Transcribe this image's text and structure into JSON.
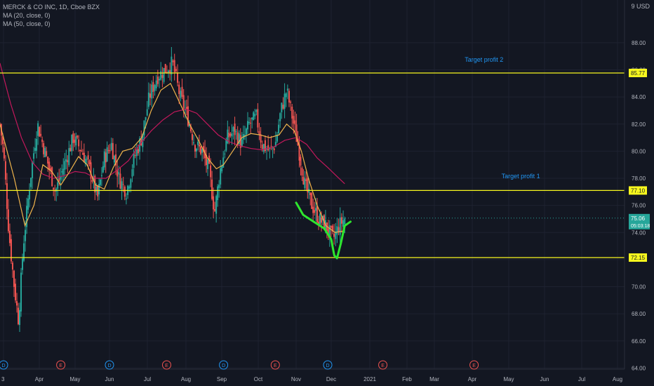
{
  "header": {
    "symbol_line": "MERCK & CO INC, 1D, Cboe BZX",
    "indicators": [
      "MA (20, close, 0)",
      "MA (50, close, 0)"
    ],
    "currency": "9 USD"
  },
  "colors": {
    "background": "#131722",
    "grid": "#1e2230",
    "up": "#26a69a",
    "down": "#ef5350",
    "ma20": "#f0b44c",
    "ma50": "#c2185b",
    "hline": "#f7f71e",
    "annotation": "#2196f3",
    "drawing": "#2ee62e",
    "axis_text": "#b2b5be"
  },
  "chart_data": {
    "type": "candlestick",
    "title": "MERCK & CO INC, 1D, Cboe BZX",
    "x_ticks": [
      "3",
      "Apr",
      "May",
      "Jun",
      "Jul",
      "Aug",
      "Sep",
      "Oct",
      "Nov",
      "Dec",
      "2021",
      "Feb",
      "Mar",
      "Apr",
      "May",
      "Jun",
      "Jul",
      "Aug"
    ],
    "y_ticks": [
      64.0,
      66.0,
      68.0,
      70.0,
      72.0,
      74.0,
      76.0,
      78.0,
      80.0,
      82.0,
      84.0,
      86.0,
      88.0
    ],
    "ylim": [
      63.4,
      89.6
    ],
    "price_series": {
      "name": "Close (approx.)",
      "points": [
        [
          -0.1,
          82.0
        ],
        [
          0.0,
          80.0
        ],
        [
          0.15,
          74.0
        ],
        [
          0.3,
          70.0
        ],
        [
          0.42,
          67.5
        ],
        [
          0.55,
          73.0
        ],
        [
          0.75,
          78.0
        ],
        [
          0.95,
          82.0
        ],
        [
          1.2,
          79.5
        ],
        [
          1.45,
          77.0
        ],
        [
          1.7,
          79.0
        ],
        [
          1.95,
          81.0
        ],
        [
          2.2,
          80.0
        ],
        [
          2.45,
          78.5
        ],
        [
          2.65,
          76.5
        ],
        [
          2.85,
          79.5
        ],
        [
          3.05,
          80.5
        ],
        [
          3.25,
          78.0
        ],
        [
          3.45,
          77.0
        ],
        [
          3.65,
          79.5
        ],
        [
          3.85,
          81.0
        ],
        [
          4.05,
          84.0
        ],
        [
          4.25,
          85.5
        ],
        [
          4.45,
          86.0
        ],
        [
          4.65,
          86.5
        ],
        [
          4.85,
          84.0
        ],
        [
          5.05,
          82.5
        ],
        [
          5.25,
          80.5
        ],
        [
          5.45,
          80.0
        ],
        [
          5.65,
          78.5
        ],
        [
          5.8,
          75.5
        ],
        [
          5.95,
          78.5
        ],
        [
          6.15,
          81.0
        ],
        [
          6.35,
          81.5
        ],
        [
          6.55,
          80.5
        ],
        [
          6.75,
          82.0
        ],
        [
          6.95,
          82.5
        ],
        [
          7.1,
          80.5
        ],
        [
          7.3,
          80.0
        ],
        [
          7.45,
          80.5
        ],
        [
          7.6,
          83.0
        ],
        [
          7.75,
          84.5
        ],
        [
          7.9,
          82.5
        ],
        [
          8.05,
          80.5
        ],
        [
          8.25,
          77.5
        ],
        [
          8.45,
          76.0
        ],
        [
          8.65,
          75.0
        ],
        [
          8.85,
          74.5
        ],
        [
          9.05,
          73.5
        ],
        [
          9.2,
          74.5
        ],
        [
          9.35,
          75.06
        ]
      ]
    },
    "ma20": {
      "name": "MA (20, close, 0)",
      "points": [
        [
          -0.1,
          82.0
        ],
        [
          0.3,
          78.0
        ],
        [
          0.6,
          74.5
        ],
        [
          0.85,
          76.0
        ],
        [
          1.1,
          79.0
        ],
        [
          1.35,
          78.5
        ],
        [
          1.6,
          77.5
        ],
        [
          1.85,
          78.5
        ],
        [
          2.1,
          79.6
        ],
        [
          2.35,
          79.0
        ],
        [
          2.6,
          77.5
        ],
        [
          2.85,
          77.2
        ],
        [
          3.1,
          78.8
        ],
        [
          3.35,
          80.0
        ],
        [
          3.6,
          80.2
        ],
        [
          3.85,
          81.0
        ],
        [
          4.1,
          83.0
        ],
        [
          4.35,
          84.5
        ],
        [
          4.6,
          85.0
        ],
        [
          4.85,
          83.5
        ],
        [
          5.1,
          82.0
        ],
        [
          5.35,
          80.8
        ],
        [
          5.6,
          79.5
        ],
        [
          5.85,
          78.7
        ],
        [
          6.05,
          79.0
        ],
        [
          6.3,
          80.0
        ],
        [
          6.55,
          81.0
        ],
        [
          6.8,
          81.3
        ],
        [
          7.05,
          81.2
        ],
        [
          7.3,
          81.0
        ],
        [
          7.55,
          81.2
        ],
        [
          7.75,
          82.0
        ],
        [
          7.95,
          81.5
        ],
        [
          8.15,
          80.0
        ],
        [
          8.35,
          78.0
        ],
        [
          8.6,
          76.0
        ],
        [
          8.85,
          74.5
        ],
        [
          9.1,
          74.0
        ],
        [
          9.3,
          74.1
        ]
      ]
    },
    "ma50": {
      "name": "MA (50, close, 0)",
      "points": [
        [
          -0.1,
          86.5
        ],
        [
          0.2,
          83.5
        ],
        [
          0.5,
          81.0
        ],
        [
          0.8,
          79.2
        ],
        [
          1.1,
          78.3
        ],
        [
          1.4,
          78.0
        ],
        [
          1.7,
          78.2
        ],
        [
          2.0,
          78.5
        ],
        [
          2.3,
          78.4
        ],
        [
          2.6,
          78.0
        ],
        [
          2.9,
          78.0
        ],
        [
          3.2,
          78.6
        ],
        [
          3.5,
          79.3
        ],
        [
          3.8,
          80.5
        ],
        [
          4.1,
          81.5
        ],
        [
          4.4,
          82.3
        ],
        [
          4.7,
          82.9
        ],
        [
          5.0,
          83.1
        ],
        [
          5.3,
          82.8
        ],
        [
          5.6,
          82.0
        ],
        [
          5.9,
          81.2
        ],
        [
          6.2,
          80.7
        ],
        [
          6.5,
          80.4
        ],
        [
          6.8,
          80.2
        ],
        [
          7.1,
          80.1
        ],
        [
          7.4,
          80.3
        ],
        [
          7.7,
          80.8
        ],
        [
          8.0,
          81.0
        ],
        [
          8.3,
          80.5
        ],
        [
          8.6,
          79.5
        ],
        [
          8.9,
          78.8
        ],
        [
          9.2,
          78.0
        ],
        [
          9.35,
          77.6
        ]
      ]
    },
    "horizontal_lines": [
      {
        "value": 85.77,
        "label": "85.77"
      },
      {
        "value": 77.1,
        "label": "77.10"
      },
      {
        "value": 72.15,
        "label": "72.15"
      }
    ],
    "current_price": {
      "value": 75.06,
      "label": "75.06",
      "countdown": "05:03:18"
    },
    "annotations": [
      {
        "text": "Target profit 2",
        "x": 12.8,
        "y": 86.6
      },
      {
        "text": "Target profit 1",
        "x": 13.8,
        "y": 78.0
      }
    ],
    "projection_path": [
      [
        8.0,
        76.2
      ],
      [
        8.2,
        75.3
      ],
      [
        8.5,
        74.8
      ],
      [
        8.8,
        74.3
      ],
      [
        9.0,
        73.5
      ],
      [
        9.08,
        72.3
      ],
      [
        9.15,
        72.1
      ],
      [
        9.25,
        73.2
      ],
      [
        9.35,
        74.5
      ],
      [
        9.5,
        74.8
      ]
    ],
    "events": [
      {
        "label": "D",
        "kind": "dividend",
        "x": 0.0
      },
      {
        "label": "E",
        "kind": "earnings",
        "x": 1.6
      },
      {
        "label": "D",
        "kind": "dividend",
        "x": 3.0
      },
      {
        "label": "E",
        "kind": "earnings",
        "x": 4.5
      },
      {
        "label": "D",
        "kind": "dividend",
        "x": 6.05
      },
      {
        "label": "E",
        "kind": "earnings",
        "x": 7.45
      },
      {
        "label": "D",
        "kind": "dividend",
        "x": 8.9
      },
      {
        "label": "E",
        "kind": "earnings",
        "x": 10.35
      },
      {
        "label": "E",
        "kind": "earnings",
        "x": 13.05
      }
    ]
  }
}
